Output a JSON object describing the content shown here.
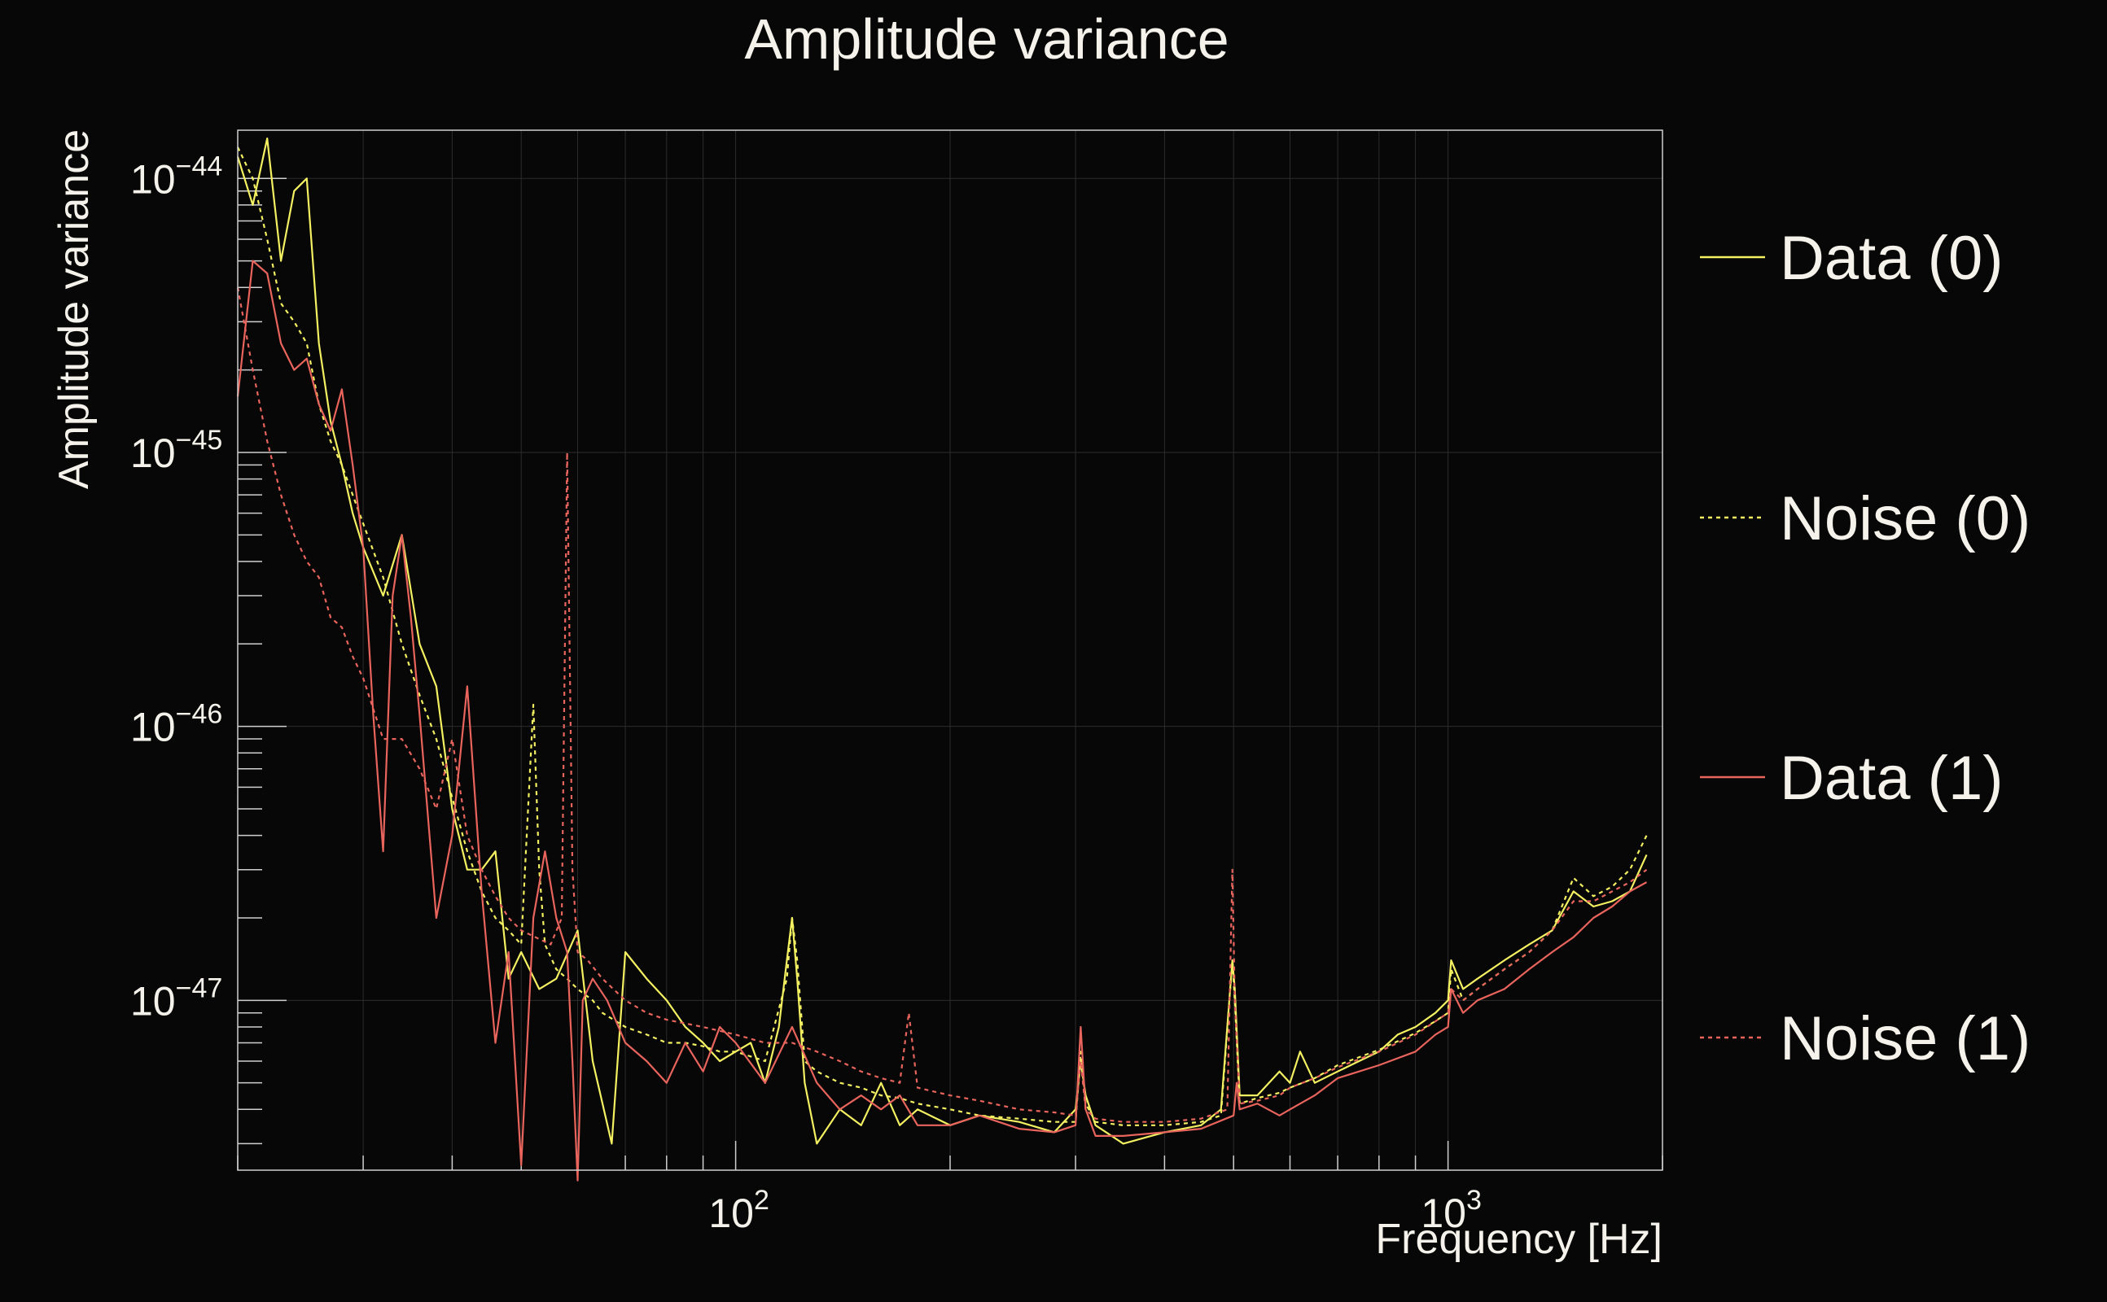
{
  "chart_data": {
    "type": "line",
    "title": "Amplitude variance",
    "xlabel": "Frequency [Hz]",
    "ylabel": "Amplitude variance",
    "x_scale": "log",
    "y_scale": "log",
    "xlim": [
      20,
      2000
    ],
    "ylim": [
      2.4e-48,
      1.5e-44
    ],
    "grid": true,
    "legend_position": "right",
    "x_ticks": [
      {
        "value": 100,
        "base": "10",
        "exp": "2"
      },
      {
        "value": 1000,
        "base": "10",
        "exp": "3"
      }
    ],
    "y_ticks": [
      {
        "value": 1e-44,
        "base": "10",
        "exp": "−44"
      },
      {
        "value": 1e-45,
        "base": "10",
        "exp": "−45"
      },
      {
        "value": 1e-46,
        "base": "10",
        "exp": "−46"
      },
      {
        "value": 1e-47,
        "base": "10",
        "exp": "−47"
      }
    ],
    "series": [
      {
        "name": "Data (0)",
        "color": "#f3f061",
        "dash": "solid",
        "x": [
          20,
          21,
          22,
          23,
          24,
          25,
          26,
          27,
          28,
          29,
          30,
          32,
          34,
          36,
          38,
          40,
          42,
          44,
          46,
          48,
          50,
          53,
          56,
          60,
          63,
          67,
          70,
          75,
          80,
          85,
          90,
          95,
          100,
          105,
          110,
          115,
          118,
          120,
          122,
          125,
          130,
          140,
          150,
          160,
          170,
          180,
          200,
          220,
          250,
          280,
          300,
          305,
          310,
          320,
          350,
          400,
          450,
          480,
          498,
          502,
          510,
          540,
          580,
          600,
          620,
          650,
          700,
          750,
          800,
          850,
          900,
          960,
          1000,
          1010,
          1050,
          1100,
          1200,
          1300,
          1400,
          1500,
          1600,
          1700,
          1800,
          1900
        ],
        "y": [
          1.2e-44,
          8e-45,
          1.4e-44,
          5e-45,
          9e-45,
          1e-44,
          2.5e-45,
          1.3e-45,
          9e-46,
          6e-46,
          4.5e-46,
          3e-46,
          5e-46,
          2e-46,
          1.4e-46,
          5e-47,
          3e-47,
          3e-47,
          3.5e-47,
          1.2e-47,
          1.5e-47,
          1.1e-47,
          1.2e-47,
          1.8e-47,
          6e-48,
          3e-48,
          1.5e-47,
          1.2e-47,
          1e-47,
          8e-48,
          7e-48,
          6e-48,
          6.5e-48,
          7e-48,
          5e-48,
          8e-48,
          1.4e-47,
          2e-47,
          1.2e-47,
          5e-48,
          3e-48,
          4e-48,
          3.5e-48,
          5e-48,
          3.5e-48,
          4e-48,
          3.5e-48,
          3.8e-48,
          3.6e-48,
          3.3e-48,
          4e-48,
          6e-48,
          4.5e-48,
          3.5e-48,
          3e-48,
          3.3e-48,
          3.5e-48,
          4e-48,
          1.4e-47,
          1.1e-47,
          4.5e-48,
          4.5e-48,
          5.5e-48,
          5e-48,
          6.5e-48,
          5e-48,
          5.5e-48,
          6e-48,
          6.5e-48,
          7.5e-48,
          8e-48,
          9e-48,
          1e-47,
          1.4e-47,
          1.1e-47,
          1.2e-47,
          1.4e-47,
          1.6e-47,
          1.8e-47,
          2.5e-47,
          2.2e-47,
          2.3e-47,
          2.5e-47,
          3.4e-47
        ]
      },
      {
        "name": "Noise (0)",
        "color": "#f3f061",
        "dash": "dotted",
        "x": [
          20,
          21,
          22,
          23,
          24,
          25,
          26,
          27,
          28,
          29,
          30,
          32,
          34,
          36,
          38,
          40,
          42,
          44,
          46,
          48,
          50,
          52,
          53,
          54,
          56,
          58,
          60,
          63,
          65,
          70,
          75,
          80,
          85,
          90,
          95,
          100,
          110,
          118,
          120,
          122,
          125,
          130,
          140,
          150,
          160,
          170,
          180,
          200,
          220,
          250,
          280,
          300,
          305,
          310,
          320,
          350,
          400,
          450,
          480,
          498,
          502,
          510,
          540,
          580,
          600,
          650,
          700,
          800,
          900,
          960,
          1000,
          1010,
          1050,
          1100,
          1200,
          1300,
          1400,
          1500,
          1600,
          1700,
          1800,
          1900
        ],
        "y": [
          1.3e-44,
          1e-44,
          6e-45,
          3.5e-45,
          3e-45,
          2.5e-45,
          1.5e-45,
          1.1e-45,
          9e-46,
          7e-46,
          5.5e-46,
          3.5e-46,
          2e-46,
          1.3e-46,
          9e-47,
          5.5e-47,
          3.5e-47,
          2.5e-47,
          2e-47,
          1.8e-47,
          1.6e-47,
          1.2e-46,
          3e-47,
          1.6e-47,
          1.3e-47,
          1.2e-47,
          1.1e-47,
          1e-47,
          9e-48,
          8e-48,
          7.5e-48,
          7e-48,
          7e-48,
          6.8e-48,
          6.5e-48,
          6.5e-48,
          6e-48,
          1.2e-47,
          2e-47,
          1.4e-47,
          6e-48,
          5.5e-48,
          5e-48,
          4.8e-48,
          4.5e-48,
          4.4e-48,
          4.2e-48,
          4e-48,
          3.8e-48,
          3.7e-48,
          3.6e-48,
          3.6e-48,
          6.5e-48,
          4.2e-48,
          3.6e-48,
          3.5e-48,
          3.5e-48,
          3.6e-48,
          3.8e-48,
          1.4e-47,
          1e-47,
          4.2e-48,
          4.4e-48,
          4.6e-48,
          4.8e-48,
          5.2e-48,
          5.8e-48,
          6.6e-48,
          7.6e-48,
          8.4e-48,
          9e-48,
          1.3e-47,
          1e-47,
          1.1e-47,
          1.3e-47,
          1.5e-47,
          1.8e-47,
          2.8e-47,
          2.4e-47,
          2.6e-47,
          3e-47,
          4e-47
        ]
      },
      {
        "name": "Data (1)",
        "color": "#e8645c",
        "dash": "solid",
        "x": [
          20,
          21,
          22,
          23,
          24,
          25,
          26,
          27,
          28,
          29,
          30,
          31,
          32,
          33,
          34,
          35,
          36,
          38,
          40,
          42,
          44,
          46,
          48,
          50,
          52,
          54,
          56,
          58,
          59,
          60,
          61,
          63,
          66,
          70,
          75,
          80,
          85,
          90,
          95,
          100,
          110,
          120,
          130,
          140,
          150,
          160,
          170,
          180,
          200,
          220,
          250,
          280,
          300,
          305,
          310,
          320,
          350,
          400,
          450,
          500,
          505,
          510,
          540,
          580,
          600,
          650,
          700,
          800,
          900,
          960,
          1000,
          1010,
          1050,
          1100,
          1200,
          1300,
          1400,
          1500,
          1600,
          1700,
          1800,
          1900
        ],
        "y": [
          1.6e-45,
          5e-45,
          4.5e-45,
          2.5e-45,
          2e-45,
          2.2e-45,
          1.5e-45,
          1.2e-45,
          1.7e-45,
          9e-46,
          4.5e-46,
          1.1e-46,
          3.5e-47,
          3e-46,
          5e-46,
          2.5e-46,
          1.1e-46,
          2e-47,
          4e-47,
          1.4e-46,
          2.5e-47,
          7e-48,
          1.5e-47,
          2.5e-48,
          2e-47,
          3.5e-47,
          2e-47,
          1.5e-47,
          6e-48,
          2.2e-48,
          1e-47,
          1.2e-47,
          1e-47,
          7e-48,
          6e-48,
          5e-48,
          7e-48,
          5.5e-48,
          8e-48,
          7e-48,
          5e-48,
          8e-48,
          5e-48,
          4e-48,
          4.5e-48,
          4e-48,
          4.5e-48,
          3.5e-48,
          3.5e-48,
          3.8e-48,
          3.4e-48,
          3.3e-48,
          3.5e-48,
          8e-48,
          4e-48,
          3.2e-48,
          3.2e-48,
          3.3e-48,
          3.4e-48,
          3.8e-48,
          5e-48,
          4e-48,
          4.2e-48,
          3.8e-48,
          4e-48,
          4.5e-48,
          5.2e-48,
          5.8e-48,
          6.5e-48,
          7.5e-48,
          8e-48,
          1.1e-47,
          9e-48,
          1e-47,
          1.1e-47,
          1.3e-47,
          1.5e-47,
          1.7e-47,
          2e-47,
          2.2e-47,
          2.5e-47,
          2.7e-47
        ]
      },
      {
        "name": "Noise (1)",
        "color": "#e8645c",
        "dash": "dotted",
        "x": [
          20,
          21,
          22,
          23,
          24,
          25,
          26,
          27,
          28,
          29,
          30,
          32,
          34,
          36,
          38,
          40,
          42,
          44,
          46,
          48,
          50,
          55,
          57,
          58,
          59,
          60,
          62,
          65,
          70,
          75,
          80,
          90,
          100,
          110,
          120,
          130,
          140,
          150,
          160,
          170,
          175,
          180,
          200,
          220,
          250,
          280,
          300,
          305,
          310,
          320,
          350,
          400,
          450,
          490,
          498,
          502,
          510,
          540,
          580,
          600,
          650,
          700,
          800,
          900,
          1000,
          1010,
          1050,
          1100,
          1200,
          1300,
          1400,
          1500,
          1600,
          1700,
          1800,
          1900
        ],
        "y": [
          4e-45,
          2e-45,
          1.1e-45,
          7e-46,
          5e-46,
          4e-46,
          3.5e-46,
          2.5e-46,
          2.3e-46,
          1.8e-46,
          1.5e-46,
          9e-47,
          9e-47,
          7e-47,
          5e-47,
          9e-47,
          4e-47,
          3e-47,
          2.4e-47,
          2e-47,
          1.8e-47,
          1.6e-47,
          2e-47,
          1e-45,
          3e-47,
          1.5e-47,
          1.4e-47,
          1.2e-47,
          1e-47,
          9e-48,
          8.5e-48,
          8e-48,
          7.5e-48,
          7e-48,
          7e-48,
          6.5e-48,
          6e-48,
          5.5e-48,
          5.2e-48,
          5e-48,
          9e-48,
          4.8e-48,
          4.5e-48,
          4.3e-48,
          4e-48,
          3.9e-48,
          3.8e-48,
          6e-48,
          4e-48,
          3.7e-48,
          3.6e-48,
          3.6e-48,
          3.7e-48,
          4e-48,
          3e-47,
          1e-47,
          4.2e-48,
          4.3e-48,
          4.5e-48,
          4.8e-48,
          5.2e-48,
          5.7e-48,
          6.5e-48,
          7.5e-48,
          9e-48,
          1.1e-47,
          1e-47,
          1.1e-47,
          1.3e-47,
          1.5e-47,
          1.8e-47,
          2.3e-47,
          2.3e-47,
          2.5e-47,
          2.7e-47,
          3e-47
        ]
      }
    ]
  }
}
